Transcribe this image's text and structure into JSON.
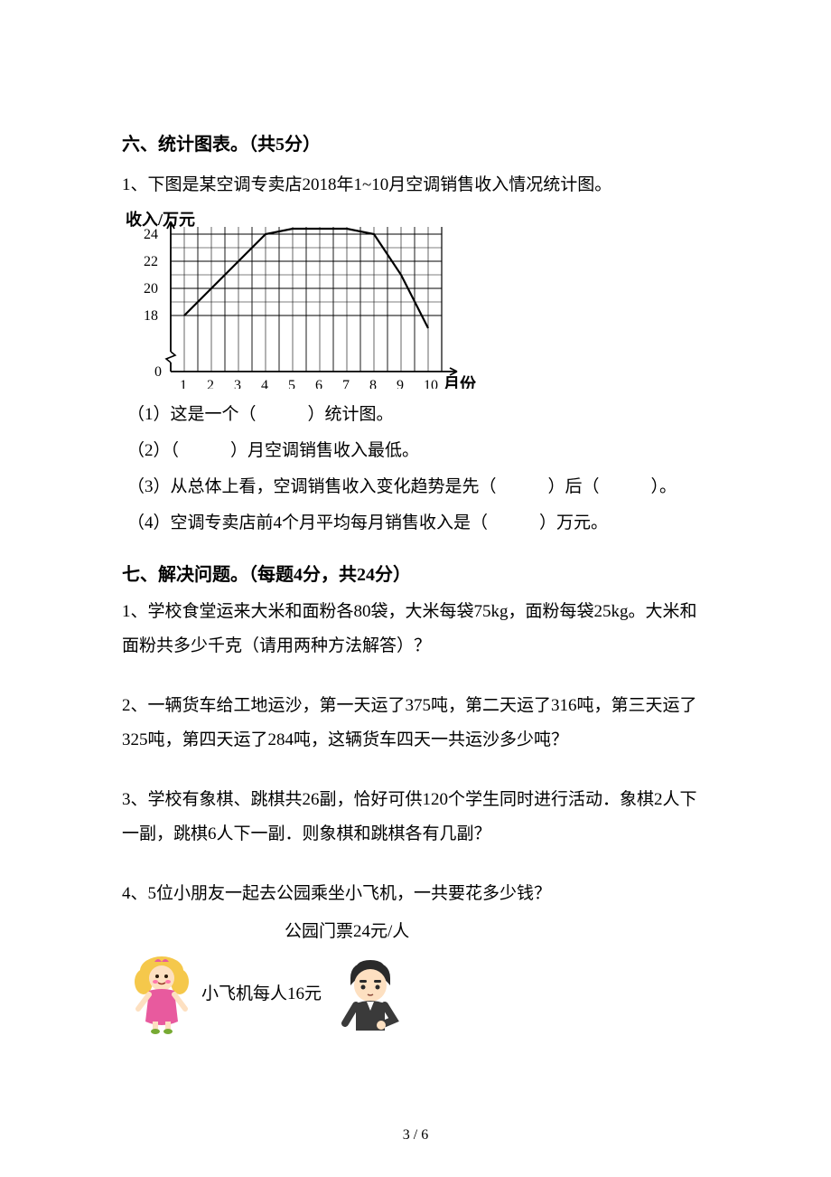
{
  "section6": {
    "heading": "六、统计图表。（共5分）",
    "q1_intro": "1、下图是某空调专卖店2018年1~10月空调销售收入情况统计图。",
    "chart": {
      "type": "line",
      "y_label": "收入/万元",
      "x_label": "月份",
      "y_ticks": [
        0,
        18,
        20,
        22,
        24
      ],
      "y_phys": [
        150,
        114,
        84,
        54,
        24
      ],
      "x_ticks": [
        1,
        2,
        3,
        4,
        5,
        6,
        7,
        8,
        9,
        10
      ],
      "x_left": 54,
      "x_step": 30,
      "data": [
        18,
        20,
        22,
        24,
        25,
        25,
        25,
        24,
        21,
        17
      ],
      "data_y_phys": [
        114,
        84,
        54,
        24,
        18,
        18,
        18,
        24,
        69,
        128
      ],
      "grid_color": "#000000",
      "line_color": "#000000",
      "line_width": 2.2,
      "background_color": "#ffffff",
      "font_family": "KaiTi",
      "label_fontsize": 18,
      "tick_fontsize": 16
    },
    "sub1": "（1）这是一个（　　　）统计图。",
    "sub2": "（2）（　　　）月空调销售收入最低。",
    "sub3": "（3）从总体上看，空调销售收入变化趋势是先（　　　）后（　　　）。",
    "sub4": "（4）空调专卖店前4个月平均每月销售收入是（　　　）万元。"
  },
  "section7": {
    "heading": "七、解决问题。（每题4分，共24分）",
    "q1": "1、学校食堂运来大米和面粉各80袋，大米每袋75kg，面粉每袋25kg。大米和面粉共多少千克（请用两种方法解答）？",
    "q2": "2、一辆货车给工地运沙，第一天运了375吨，第二天运了316吨，第三天运了325吨，第四天运了284吨，这辆货车四天一共运沙多少吨？",
    "q3": "3、学校有象棋、跳棋共26副，恰好可供120个学生同时进行活动．象棋2人下一副，跳棋6人下一副．则象棋和跳棋各有几副？",
    "q4_intro": "4、5位小朋友一起去公园乘坐小飞机，一共要花多少钱？",
    "ticket_price": "公园门票24元/人",
    "plane_price": "小飞机每人16元"
  },
  "page_number": "3 / 6"
}
